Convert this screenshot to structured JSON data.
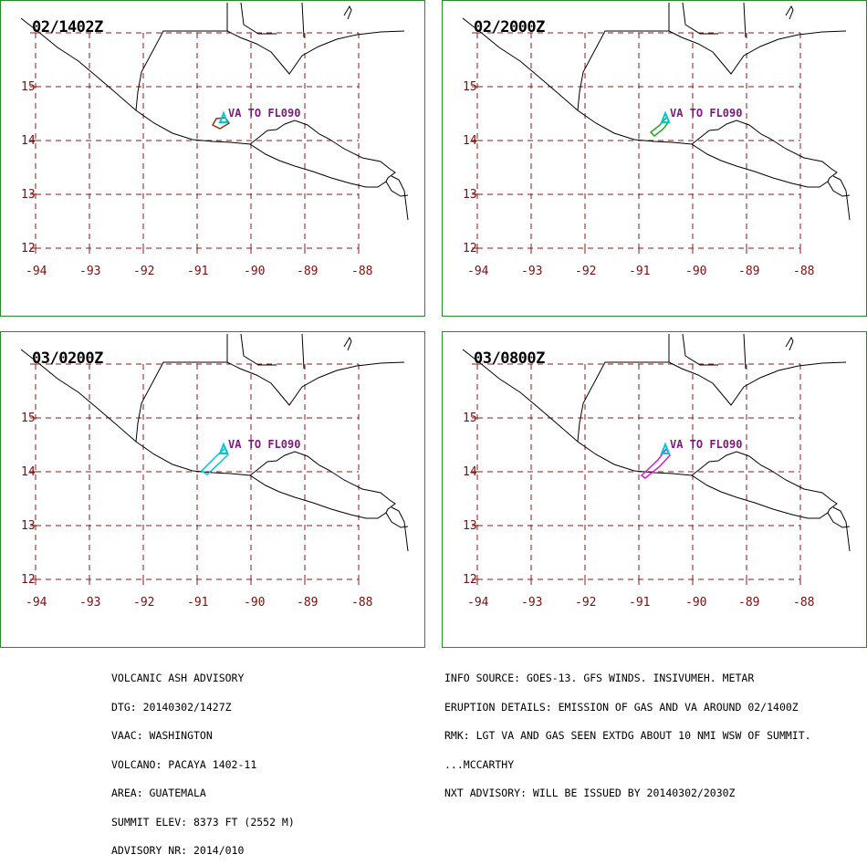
{
  "panels": [
    {
      "time": "02/1402Z",
      "va_label": "VA TO FL090",
      "cloud_color": "#8B3A1A"
    },
    {
      "time": "02/2000Z",
      "va_label": "VA TO FL090",
      "cloud_color": "#22AA22"
    },
    {
      "time": "03/0200Z",
      "va_label": "VA TO FL090",
      "cloud_color": "#00C8D8"
    },
    {
      "time": "03/0800Z",
      "va_label": "VA TO FL090",
      "cloud_color": "#D020D0"
    }
  ],
  "axes": {
    "lat_labels": [
      "15",
      "14",
      "13",
      "12"
    ],
    "lon_labels": [
      "-94",
      "-93",
      "-92",
      "-91",
      "-90",
      "-89",
      "-88"
    ]
  },
  "colors": {
    "grid": "#8B1A1A",
    "frame": "#2a8a2a",
    "coast": "#000000",
    "label": "#7a1010",
    "va_text": "#7a1a7a"
  },
  "advisory_left": [
    "VOLCANIC ASH ADVISORY",
    "DTG: 20140302/1427Z",
    "VAAC: WASHINGTON",
    "VOLCANO: PACAYA 1402-11",
    "AREA: GUATEMALA",
    "SUMMIT ELEV: 8373 FT (2552 M)",
    "ADVISORY NR: 2014/010"
  ],
  "advisory_right": [
    "INFO SOURCE: GOES-13. GFS WINDS. INSIVUMEH. METAR",
    "ERUPTION DETAILS: EMISSION OF GAS AND VA AROUND 02/1400Z",
    "RMK: LGT VA AND GAS SEEN EXTDG ABOUT 10 NMI WSW OF SUMMIT.",
    "...MCCARTHY",
    "NXT ADVISORY: WILL BE ISSUED BY 20140302/2030Z"
  ]
}
